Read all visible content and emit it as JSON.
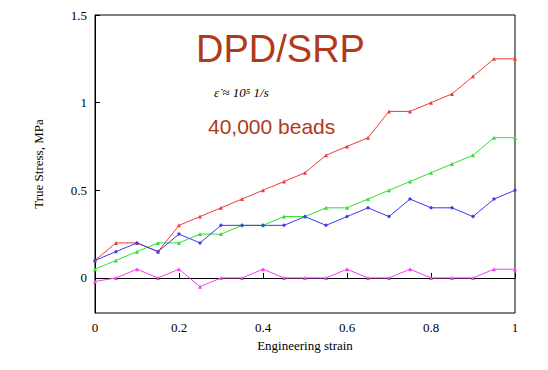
{
  "chart_data": {
    "type": "line",
    "x_label": "Engineering strain",
    "y_label": "True Stress, MPa",
    "annotations": [
      {
        "text": "DPD/SRP",
        "color": "#b03a1a"
      },
      {
        "text": "ε̇ ≈ 10⁵ 1/s",
        "color": "#000000"
      },
      {
        "text": "40,000 beads",
        "color": "#b03a1a"
      }
    ],
    "x": [
      0,
      0.05,
      0.1,
      0.15,
      0.2,
      0.25,
      0.3,
      0.35,
      0.4,
      0.45,
      0.5,
      0.55,
      0.6,
      0.65,
      0.7,
      0.75,
      0.8,
      0.85,
      0.9,
      0.95,
      1
    ],
    "series": [
      {
        "color": "#f03c3c",
        "marker": "triangle",
        "values": [
          0.1,
          0.2,
          0.2,
          0.15,
          0.3,
          0.35,
          0.4,
          0.45,
          0.5,
          0.55,
          0.6,
          0.7,
          0.75,
          0.8,
          0.95,
          0.95,
          1.0,
          1.05,
          1.15,
          1.25,
          1.25
        ]
      },
      {
        "color": "#33dd33",
        "marker": "triangle",
        "values": [
          0.05,
          0.1,
          0.15,
          0.2,
          0.2,
          0.25,
          0.25,
          0.3,
          0.3,
          0.35,
          0.35,
          0.4,
          0.4,
          0.45,
          0.5,
          0.55,
          0.6,
          0.65,
          0.7,
          0.8,
          0.8
        ]
      },
      {
        "color": "#3a3aee",
        "marker": "diamond",
        "values": [
          0.1,
          0.15,
          0.2,
          0.15,
          0.25,
          0.2,
          0.3,
          0.3,
          0.3,
          0.3,
          0.35,
          0.3,
          0.35,
          0.4,
          0.35,
          0.45,
          0.4,
          0.4,
          0.35,
          0.45,
          0.5
        ]
      },
      {
        "color": "#ee44ee",
        "marker": "triangle",
        "values": [
          -0.02,
          0.0,
          0.05,
          0.0,
          0.05,
          -0.05,
          0.0,
          0.0,
          0.05,
          0.0,
          0.0,
          0.0,
          0.05,
          0.0,
          0.0,
          0.05,
          0.0,
          0.0,
          0.0,
          0.05,
          0.05
        ]
      }
    ],
    "xlim": [
      0,
      1
    ],
    "xticks": [
      0,
      0.2,
      0.4,
      0.6,
      0.8,
      1
    ],
    "ylim": [
      -0.2,
      1.5
    ],
    "yticks": [
      0,
      0.5,
      1,
      1.5
    ],
    "grid": false
  }
}
